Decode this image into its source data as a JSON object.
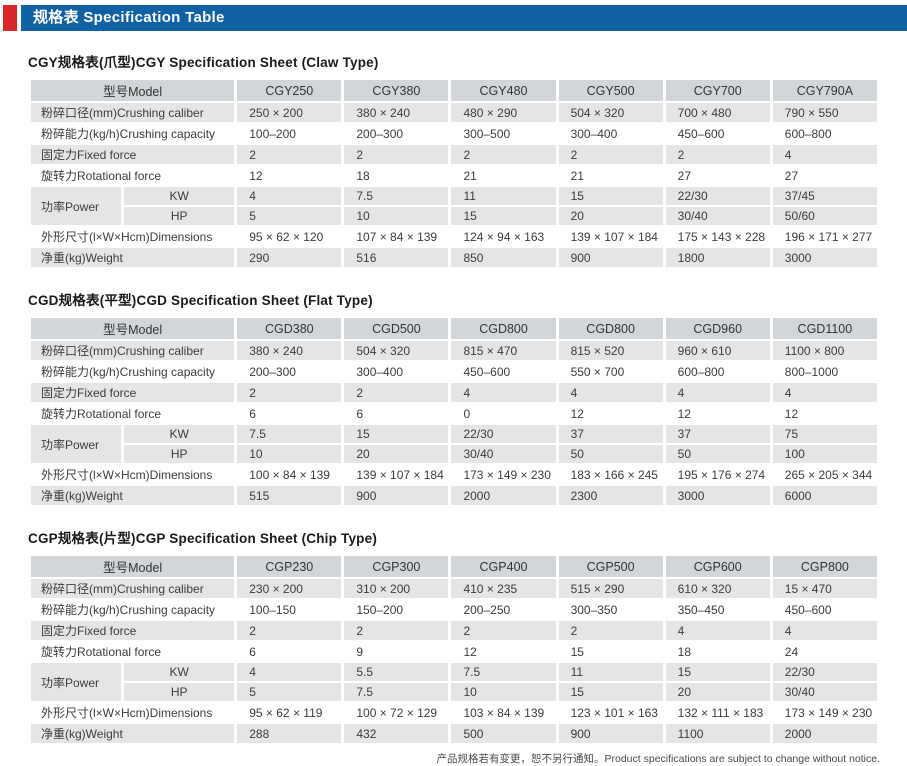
{
  "header": {
    "title": "规格表 Specification Table",
    "bar_color": "#1161a5",
    "accent_color": "#d8262c"
  },
  "model_column_header": "型号Model",
  "tables": [
    {
      "title": "CGY规格表(爪型)CGY Specification Sheet (Claw Type)",
      "models": [
        "CGY250",
        "CGY380",
        "CGY480",
        "CGY500",
        "CGY700",
        "CGY790A"
      ],
      "rows": [
        {
          "type": "normal",
          "shade": "gray",
          "label": "粉碎口径(mm)Crushing caliber",
          "values": [
            "250 × 200",
            "380 × 240",
            "480 × 290",
            "504 × 320",
            "700 × 480",
            "790 × 550"
          ]
        },
        {
          "type": "normal",
          "shade": "white",
          "label": "粉碎能力(kg/h)Crushing capacity",
          "values": [
            "100–200",
            "200–300",
            "300–500",
            "300–400",
            "450–600",
            "600–800"
          ]
        },
        {
          "type": "normal",
          "shade": "gray",
          "label": "固定力Fixed force",
          "values": [
            "2",
            "2",
            "2",
            "2",
            "2",
            "4"
          ]
        },
        {
          "type": "normal",
          "shade": "white",
          "label": "旋转力Rotational force",
          "values": [
            "12",
            "18",
            "21",
            "21",
            "27",
            "27"
          ]
        },
        {
          "type": "power",
          "shade": "gray",
          "label": "功率Power",
          "sub": [
            {
              "label": "KW",
              "values": [
                "4",
                "7.5",
                "11",
                "15",
                "22/30",
                "37/45"
              ]
            },
            {
              "label": "HP",
              "values": [
                "5",
                "10",
                "15",
                "20",
                "30/40",
                "50/60"
              ]
            }
          ]
        },
        {
          "type": "normal",
          "shade": "white",
          "label": "外形尺寸(l×W×Hcm)Dimensions",
          "values": [
            "95 × 62 × 120",
            "107 × 84 × 139",
            "124 × 94 × 163",
            "139 × 107 × 184",
            "175 × 143 × 228",
            "196 × 171 × 277"
          ]
        },
        {
          "type": "normal",
          "shade": "gray",
          "label": "净重(kg)Weight",
          "values": [
            "290",
            "516",
            "850",
            "900",
            "1800",
            "3000"
          ]
        }
      ]
    },
    {
      "title": "CGD规格表(平型)CGD Specification Sheet (Flat Type)",
      "models": [
        "CGD380",
        "CGD500",
        "CGD800",
        "CGD800",
        "CGD960",
        "CGD1100"
      ],
      "rows": [
        {
          "type": "normal",
          "shade": "gray",
          "label": "粉碎口径(mm)Crushing caliber",
          "values": [
            "380 × 240",
            "504 × 320",
            "815 × 470",
            "815 × 520",
            "960 × 610",
            "1100 × 800"
          ]
        },
        {
          "type": "normal",
          "shade": "white",
          "label": "粉碎能力(kg/h)Crushing capacity",
          "values": [
            "200–300",
            "300–400",
            "450–600",
            "550 × 700",
            "600–800",
            "800–1000"
          ]
        },
        {
          "type": "normal",
          "shade": "gray",
          "label": "固定力Fixed force",
          "values": [
            "2",
            "2",
            "4",
            "4",
            "4",
            "4"
          ]
        },
        {
          "type": "normal",
          "shade": "white",
          "label": "旋转力Rotational force",
          "values": [
            "6",
            "6",
            "0",
            "12",
            "12",
            "12"
          ]
        },
        {
          "type": "power",
          "shade": "gray",
          "label": "功率Power",
          "sub": [
            {
              "label": "KW",
              "values": [
                "7.5",
                "15",
                "22/30",
                "37",
                "37",
                "75"
              ]
            },
            {
              "label": "HP",
              "values": [
                "10",
                "20",
                "30/40",
                "50",
                "50",
                "100"
              ]
            }
          ]
        },
        {
          "type": "normal",
          "shade": "white",
          "label": "外形尺寸(l×W×Hcm)Dimensions",
          "values": [
            "100 × 84 × 139",
            "139 × 107 × 184",
            "173 × 149 × 230",
            "183 × 166 × 245",
            "195 × 176 × 274",
            "265 × 205 × 344"
          ]
        },
        {
          "type": "normal",
          "shade": "gray",
          "label": "净重(kg)Weight",
          "values": [
            "515",
            "900",
            "2000",
            "2300",
            "3000",
            "6000"
          ]
        }
      ]
    },
    {
      "title": "CGP规格表(片型)CGP Specification Sheet (Chip Type)",
      "models": [
        "CGP230",
        "CGP300",
        "CGP400",
        "CGP500",
        "CGP600",
        "CGP800"
      ],
      "rows": [
        {
          "type": "normal",
          "shade": "gray",
          "label": "粉碎口径(mm)Crushing caliber",
          "values": [
            "230 × 200",
            "310 × 200",
            "410 × 235",
            "515 × 290",
            "610 × 320",
            "15 × 470"
          ]
        },
        {
          "type": "normal",
          "shade": "white",
          "label": "粉碎能力(kg/h)Crushing capacity",
          "values": [
            "100–150",
            "150–200",
            "200–250",
            "300–350",
            "350–450",
            "450–600"
          ]
        },
        {
          "type": "normal",
          "shade": "gray",
          "label": "固定力Fixed force",
          "values": [
            "2",
            "2",
            "2",
            "2",
            "4",
            "4"
          ]
        },
        {
          "type": "normal",
          "shade": "white",
          "label": "旋转力Rotational force",
          "values": [
            "6",
            "9",
            "12",
            "15",
            "18",
            "24"
          ]
        },
        {
          "type": "power",
          "shade": "gray",
          "label": "功率Power",
          "sub": [
            {
              "label": "KW",
              "values": [
                "4",
                "5.5",
                "7.5",
                "11",
                "15",
                "22/30"
              ]
            },
            {
              "label": "HP",
              "values": [
                "5",
                "7.5",
                "10",
                "15",
                "20",
                "30/40"
              ]
            }
          ]
        },
        {
          "type": "normal",
          "shade": "white",
          "label": "外形尺寸(l×W×Hcm)Dimensions",
          "values": [
            "95 × 62 × 119",
            "100 × 72 × 129",
            "103 × 84 × 139",
            "123 × 101 × 163",
            "132 × 111 × 183",
            "173 × 149 × 230"
          ]
        },
        {
          "type": "normal",
          "shade": "gray",
          "label": "净重(kg)Weight",
          "values": [
            "288",
            "432",
            "500",
            "900",
            "1100",
            "2000"
          ]
        }
      ]
    }
  ],
  "footer": {
    "note": "产品规格若有变更，恕不另行通知。Product specifications are subject to change without notice."
  }
}
